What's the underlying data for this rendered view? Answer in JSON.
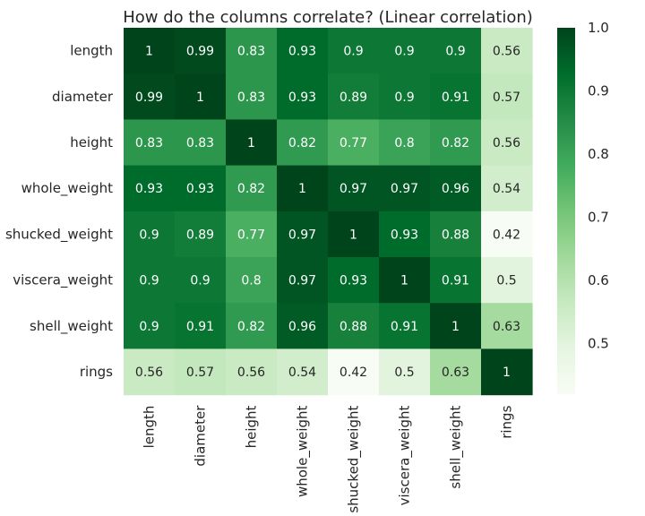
{
  "chart_data": {
    "type": "heatmap",
    "title": "How do the columns correlate? (Linear correlation)",
    "xlabel": "",
    "ylabel": "",
    "rows": [
      "length",
      "diameter",
      "height",
      "whole_weight",
      "shucked_weight",
      "viscera_weight",
      "shell_weight",
      "rings"
    ],
    "columns": [
      "length",
      "diameter",
      "height",
      "whole_weight",
      "shucked_weight",
      "viscera_weight",
      "shell_weight",
      "rings"
    ],
    "values": [
      [
        1,
        0.99,
        0.83,
        0.93,
        0.9,
        0.9,
        0.9,
        0.56
      ],
      [
        0.99,
        1,
        0.83,
        0.93,
        0.89,
        0.9,
        0.91,
        0.57
      ],
      [
        0.83,
        0.83,
        1,
        0.82,
        0.77,
        0.8,
        0.82,
        0.56
      ],
      [
        0.93,
        0.93,
        0.82,
        1,
        0.97,
        0.97,
        0.96,
        0.54
      ],
      [
        0.9,
        0.89,
        0.77,
        0.97,
        1,
        0.93,
        0.88,
        0.42
      ],
      [
        0.9,
        0.9,
        0.8,
        0.97,
        0.93,
        1,
        0.91,
        0.5
      ],
      [
        0.9,
        0.91,
        0.82,
        0.96,
        0.88,
        0.91,
        1,
        0.63
      ],
      [
        0.56,
        0.57,
        0.56,
        0.54,
        0.42,
        0.5,
        0.63,
        1
      ]
    ],
    "colorbar": {
      "min": 0.42,
      "max": 1.0,
      "ticks": [
        "0.5",
        "0.6",
        "0.7",
        "0.8",
        "0.9",
        "1.0"
      ],
      "colormap": "Greens",
      "colors": [
        "#f7fcf5",
        "#e5f5e0",
        "#c7e9c0",
        "#a1d99b",
        "#74c476",
        "#41ab5d",
        "#238b45",
        "#006d2c",
        "#00441b"
      ]
    },
    "annotations": true,
    "grid": false,
    "legend": "colorbar-right"
  }
}
